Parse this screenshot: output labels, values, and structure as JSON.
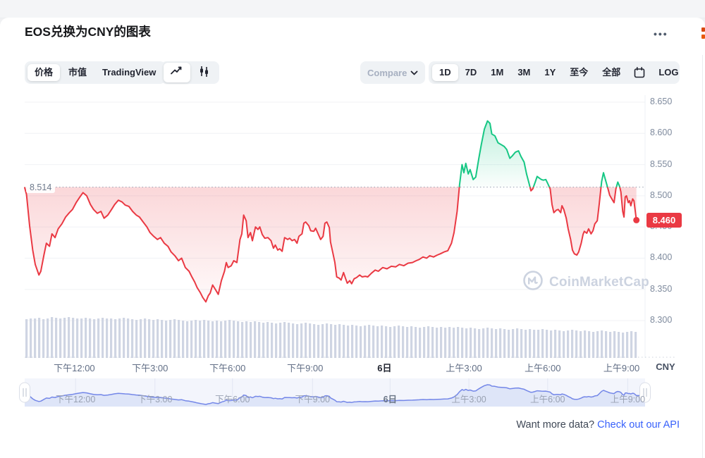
{
  "header": {
    "title": "EOS兑换为CNY的图表",
    "menu": "•••"
  },
  "toolbar": {
    "view_tabs": [
      {
        "label": "价格",
        "active": true
      },
      {
        "label": "市值",
        "active": false
      },
      {
        "label": "TradingView",
        "active": false
      }
    ],
    "chart_types": [
      {
        "name": "line-chart",
        "active": true
      },
      {
        "name": "candlestick-chart",
        "active": false
      }
    ],
    "compare": {
      "label": "Compare"
    },
    "ranges": [
      {
        "label": "1D",
        "active": true
      },
      {
        "label": "7D",
        "active": false
      },
      {
        "label": "1M",
        "active": false
      },
      {
        "label": "3M",
        "active": false
      },
      {
        "label": "1Y",
        "active": false
      },
      {
        "label": "至今",
        "active": false
      },
      {
        "label": "全部",
        "active": false
      }
    ],
    "log_label": "LOG"
  },
  "axis_unit": "CNY",
  "watermark": {
    "brand": "CoinMarketCap"
  },
  "footer": {
    "prompt": "Want more data?",
    "link": "Check out our API"
  },
  "chart_data": {
    "type": "line",
    "pair": "EOS/CNY",
    "interval": "1D",
    "unit": "CNY",
    "open_reference": 8.514,
    "open_reference_label": "8.514",
    "last_price": 8.46,
    "last_price_label": "8.460",
    "ylim": [
      8.28,
      8.682
    ],
    "yticks": [
      {
        "label": "8.650",
        "v": 8.65
      },
      {
        "label": "8.600",
        "v": 8.6
      },
      {
        "label": "8.550",
        "v": 8.55
      },
      {
        "label": "8.500",
        "v": 8.5
      },
      {
        "label": "8.450",
        "v": 8.45
      },
      {
        "label": "8.400",
        "v": 8.4
      },
      {
        "label": "8.350",
        "v": 8.35
      },
      {
        "label": "8.300",
        "v": 8.3
      }
    ],
    "xticks": [
      {
        "label": "下午12:00",
        "f": 0.08,
        "bold": false
      },
      {
        "label": "下午3:00",
        "f": 0.202,
        "bold": false
      },
      {
        "label": "下午6:00",
        "f": 0.327,
        "bold": false
      },
      {
        "label": "下午9:00",
        "f": 0.452,
        "bold": false
      },
      {
        "label": "6日",
        "f": 0.58,
        "bold": true
      },
      {
        "label": "上午3:00",
        "f": 0.708,
        "bold": false
      },
      {
        "label": "上午6:00",
        "f": 0.835,
        "bold": false
      },
      {
        "label": "上午9:00",
        "f": 0.962,
        "bold": false
      }
    ],
    "colors": {
      "up": "#16c784",
      "down": "#ea3943",
      "volume": "#cfd5e3",
      "nav_line": "#7487e8",
      "grid": "#f0f2f6",
      "ref_dotted": "#98a1b3"
    },
    "points": [
      [
        0.0,
        8.513
      ],
      [
        0.003,
        8.502
      ],
      [
        0.008,
        8.452
      ],
      [
        0.013,
        8.413
      ],
      [
        0.017,
        8.39
      ],
      [
        0.023,
        8.373
      ],
      [
        0.026,
        8.379
      ],
      [
        0.031,
        8.405
      ],
      [
        0.035,
        8.424
      ],
      [
        0.04,
        8.419
      ],
      [
        0.044,
        8.439
      ],
      [
        0.049,
        8.433
      ],
      [
        0.054,
        8.447
      ],
      [
        0.06,
        8.455
      ],
      [
        0.066,
        8.466
      ],
      [
        0.072,
        8.473
      ],
      [
        0.077,
        8.478
      ],
      [
        0.083,
        8.489
      ],
      [
        0.089,
        8.498
      ],
      [
        0.094,
        8.505
      ],
      [
        0.1,
        8.5
      ],
      [
        0.106,
        8.486
      ],
      [
        0.111,
        8.478
      ],
      [
        0.117,
        8.472
      ],
      [
        0.123,
        8.475
      ],
      [
        0.128,
        8.464
      ],
      [
        0.134,
        8.469
      ],
      [
        0.14,
        8.478
      ],
      [
        0.145,
        8.486
      ],
      [
        0.151,
        8.493
      ],
      [
        0.157,
        8.49
      ],
      [
        0.162,
        8.485
      ],
      [
        0.168,
        8.483
      ],
      [
        0.174,
        8.475
      ],
      [
        0.18,
        8.469
      ],
      [
        0.185,
        8.466
      ],
      [
        0.191,
        8.458
      ],
      [
        0.197,
        8.45
      ],
      [
        0.202,
        8.441
      ],
      [
        0.208,
        8.435
      ],
      [
        0.214,
        8.43
      ],
      [
        0.219,
        8.433
      ],
      [
        0.225,
        8.424
      ],
      [
        0.231,
        8.419
      ],
      [
        0.236,
        8.41
      ],
      [
        0.242,
        8.404
      ],
      [
        0.248,
        8.396
      ],
      [
        0.253,
        8.4
      ],
      [
        0.259,
        8.385
      ],
      [
        0.265,
        8.379
      ],
      [
        0.269,
        8.371
      ],
      [
        0.274,
        8.362
      ],
      [
        0.278,
        8.353
      ],
      [
        0.283,
        8.345
      ],
      [
        0.287,
        8.337
      ],
      [
        0.292,
        8.33
      ],
      [
        0.296,
        8.34
      ],
      [
        0.299,
        8.344
      ],
      [
        0.303,
        8.357
      ],
      [
        0.308,
        8.349
      ],
      [
        0.312,
        8.342
      ],
      [
        0.317,
        8.364
      ],
      [
        0.322,
        8.379
      ],
      [
        0.325,
        8.393
      ],
      [
        0.328,
        8.385
      ],
      [
        0.333,
        8.388
      ],
      [
        0.337,
        8.396
      ],
      [
        0.342,
        8.393
      ],
      [
        0.347,
        8.43
      ],
      [
        0.35,
        8.439
      ],
      [
        0.353,
        8.469
      ],
      [
        0.357,
        8.46
      ],
      [
        0.36,
        8.433
      ],
      [
        0.364,
        8.441
      ],
      [
        0.367,
        8.428
      ],
      [
        0.372,
        8.45
      ],
      [
        0.376,
        8.446
      ],
      [
        0.379,
        8.45
      ],
      [
        0.383,
        8.438
      ],
      [
        0.387,
        8.432
      ],
      [
        0.392,
        8.433
      ],
      [
        0.397,
        8.428
      ],
      [
        0.401,
        8.416
      ],
      [
        0.404,
        8.421
      ],
      [
        0.408,
        8.413
      ],
      [
        0.411,
        8.415
      ],
      [
        0.415,
        8.411
      ],
      [
        0.419,
        8.433
      ],
      [
        0.424,
        8.43
      ],
      [
        0.427,
        8.432
      ],
      [
        0.431,
        8.428
      ],
      [
        0.435,
        8.43
      ],
      [
        0.439,
        8.424
      ],
      [
        0.442,
        8.435
      ],
      [
        0.447,
        8.439
      ],
      [
        0.45,
        8.456
      ],
      [
        0.453,
        8.458
      ],
      [
        0.458,
        8.452
      ],
      [
        0.461,
        8.444
      ],
      [
        0.466,
        8.443
      ],
      [
        0.469,
        8.448
      ],
      [
        0.473,
        8.439
      ],
      [
        0.477,
        8.43
      ],
      [
        0.481,
        8.435
      ],
      [
        0.484,
        8.456
      ],
      [
        0.487,
        8.458
      ],
      [
        0.491,
        8.449
      ],
      [
        0.493,
        8.426
      ],
      [
        0.497,
        8.407
      ],
      [
        0.5,
        8.393
      ],
      [
        0.503,
        8.37
      ],
      [
        0.507,
        8.368
      ],
      [
        0.51,
        8.365
      ],
      [
        0.514,
        8.377
      ],
      [
        0.517,
        8.368
      ],
      [
        0.52,
        8.36
      ],
      [
        0.524,
        8.364
      ],
      [
        0.527,
        8.359
      ],
      [
        0.531,
        8.367
      ],
      [
        0.535,
        8.369
      ],
      [
        0.54,
        8.373
      ],
      [
        0.544,
        8.37
      ],
      [
        0.549,
        8.371
      ],
      [
        0.553,
        8.37
      ],
      [
        0.559,
        8.376
      ],
      [
        0.565,
        8.381
      ],
      [
        0.57,
        8.379
      ],
      [
        0.577,
        8.385
      ],
      [
        0.584,
        8.383
      ],
      [
        0.591,
        8.387
      ],
      [
        0.598,
        8.386
      ],
      [
        0.604,
        8.39
      ],
      [
        0.611,
        8.388
      ],
      [
        0.618,
        8.392
      ],
      [
        0.625,
        8.393
      ],
      [
        0.631,
        8.396
      ],
      [
        0.636,
        8.398
      ],
      [
        0.642,
        8.402
      ],
      [
        0.648,
        8.4
      ],
      [
        0.653,
        8.404
      ],
      [
        0.659,
        8.402
      ],
      [
        0.665,
        8.405
      ],
      [
        0.67,
        8.407
      ],
      [
        0.676,
        8.41
      ],
      [
        0.682,
        8.412
      ],
      [
        0.688,
        8.424
      ],
      [
        0.692,
        8.441
      ],
      [
        0.697,
        8.475
      ],
      [
        0.701,
        8.518
      ],
      [
        0.705,
        8.55
      ],
      [
        0.708,
        8.537
      ],
      [
        0.711,
        8.552
      ],
      [
        0.715,
        8.535
      ],
      [
        0.718,
        8.542
      ],
      [
        0.723,
        8.526
      ],
      [
        0.727,
        8.53
      ],
      [
        0.732,
        8.56
      ],
      [
        0.736,
        8.582
      ],
      [
        0.741,
        8.607
      ],
      [
        0.746,
        8.62
      ],
      [
        0.75,
        8.616
      ],
      [
        0.753,
        8.599
      ],
      [
        0.758,
        8.596
      ],
      [
        0.763,
        8.585
      ],
      [
        0.768,
        8.582
      ],
      [
        0.773,
        8.579
      ],
      [
        0.777,
        8.574
      ],
      [
        0.782,
        8.56
      ],
      [
        0.786,
        8.564
      ],
      [
        0.791,
        8.57
      ],
      [
        0.796,
        8.572
      ],
      [
        0.8,
        8.563
      ],
      [
        0.805,
        8.554
      ],
      [
        0.809,
        8.535
      ],
      [
        0.813,
        8.52
      ],
      [
        0.816,
        8.508
      ],
      [
        0.819,
        8.511
      ],
      [
        0.823,
        8.522
      ],
      [
        0.826,
        8.531
      ],
      [
        0.83,
        8.528
      ],
      [
        0.833,
        8.526
      ],
      [
        0.836,
        8.525
      ],
      [
        0.84,
        8.526
      ],
      [
        0.843,
        8.52
      ],
      [
        0.847,
        8.511
      ],
      [
        0.85,
        8.486
      ],
      [
        0.853,
        8.473
      ],
      [
        0.857,
        8.477
      ],
      [
        0.86,
        8.478
      ],
      [
        0.864,
        8.473
      ],
      [
        0.866,
        8.484
      ],
      [
        0.869,
        8.478
      ],
      [
        0.873,
        8.464
      ],
      [
        0.876,
        8.447
      ],
      [
        0.88,
        8.43
      ],
      [
        0.883,
        8.413
      ],
      [
        0.886,
        8.407
      ],
      [
        0.89,
        8.405
      ],
      [
        0.893,
        8.41
      ],
      [
        0.897,
        8.424
      ],
      [
        0.9,
        8.438
      ],
      [
        0.902,
        8.443
      ],
      [
        0.906,
        8.44
      ],
      [
        0.909,
        8.447
      ],
      [
        0.913,
        8.439
      ],
      [
        0.916,
        8.444
      ],
      [
        0.919,
        8.455
      ],
      [
        0.923,
        8.46
      ],
      [
        0.926,
        8.486
      ],
      [
        0.93,
        8.523
      ],
      [
        0.933,
        8.537
      ],
      [
        0.936,
        8.526
      ],
      [
        0.94,
        8.512
      ],
      [
        0.943,
        8.501
      ],
      [
        0.947,
        8.494
      ],
      [
        0.95,
        8.489
      ],
      [
        0.953,
        8.511
      ],
      [
        0.956,
        8.522
      ],
      [
        0.959,
        8.515
      ],
      [
        0.961,
        8.506
      ],
      [
        0.964,
        8.475
      ],
      [
        0.966,
        8.466
      ],
      [
        0.968,
        8.498
      ],
      [
        0.97,
        8.5
      ],
      [
        0.973,
        8.489
      ],
      [
        0.975,
        8.492
      ],
      [
        0.977,
        8.484
      ],
      [
        0.98,
        8.495
      ],
      [
        0.982,
        8.492
      ],
      [
        0.984,
        8.477
      ],
      [
        0.986,
        8.461
      ]
    ],
    "volume_heights": [
      55,
      56,
      56,
      57,
      55,
      56,
      58,
      57,
      56,
      57,
      58,
      57,
      56,
      56,
      57,
      56,
      55,
      56,
      57,
      56,
      56,
      55,
      56,
      57,
      56,
      55,
      54,
      55,
      56,
      55,
      54,
      55,
      54,
      53,
      54,
      55,
      54,
      53,
      52,
      53,
      54,
      53,
      54,
      53,
      52,
      53,
      52,
      53,
      54,
      53,
      52,
      51,
      52,
      51,
      52,
      51,
      50,
      51,
      50,
      49,
      50,
      51,
      50,
      49,
      48,
      49,
      50,
      49,
      48,
      47,
      48,
      49,
      48,
      47,
      48,
      47,
      46,
      47,
      46,
      45,
      46,
      47,
      46,
      45,
      46,
      45,
      44,
      45,
      46,
      45,
      44,
      45,
      44,
      43,
      44,
      45,
      44,
      43,
      44,
      43,
      44,
      43,
      44,
      43,
      42,
      43,
      42,
      41,
      42,
      43,
      42,
      41,
      42,
      41,
      40,
      41,
      42,
      41,
      40,
      41,
      40,
      40,
      41,
      40,
      39,
      40,
      39,
      38,
      39,
      40,
      39,
      38,
      39,
      38,
      37,
      38,
      39,
      38,
      37,
      38,
      37,
      36,
      37,
      38,
      37
    ]
  },
  "navigator": {
    "xticks": [
      {
        "label": "下午12:00",
        "f": 0.082,
        "bold": false
      },
      {
        "label": "下午3:00",
        "f": 0.21,
        "bold": false
      },
      {
        "label": "下午6:00",
        "f": 0.335,
        "bold": false
      },
      {
        "label": "下午9:00",
        "f": 0.464,
        "bold": false
      },
      {
        "label": "6日",
        "f": 0.589,
        "bold": true
      },
      {
        "label": "上午3:00",
        "f": 0.716,
        "bold": false
      },
      {
        "label": "上午6:00",
        "f": 0.843,
        "bold": false
      },
      {
        "label": "上午9:00",
        "f": 0.972,
        "bold": false
      }
    ]
  }
}
